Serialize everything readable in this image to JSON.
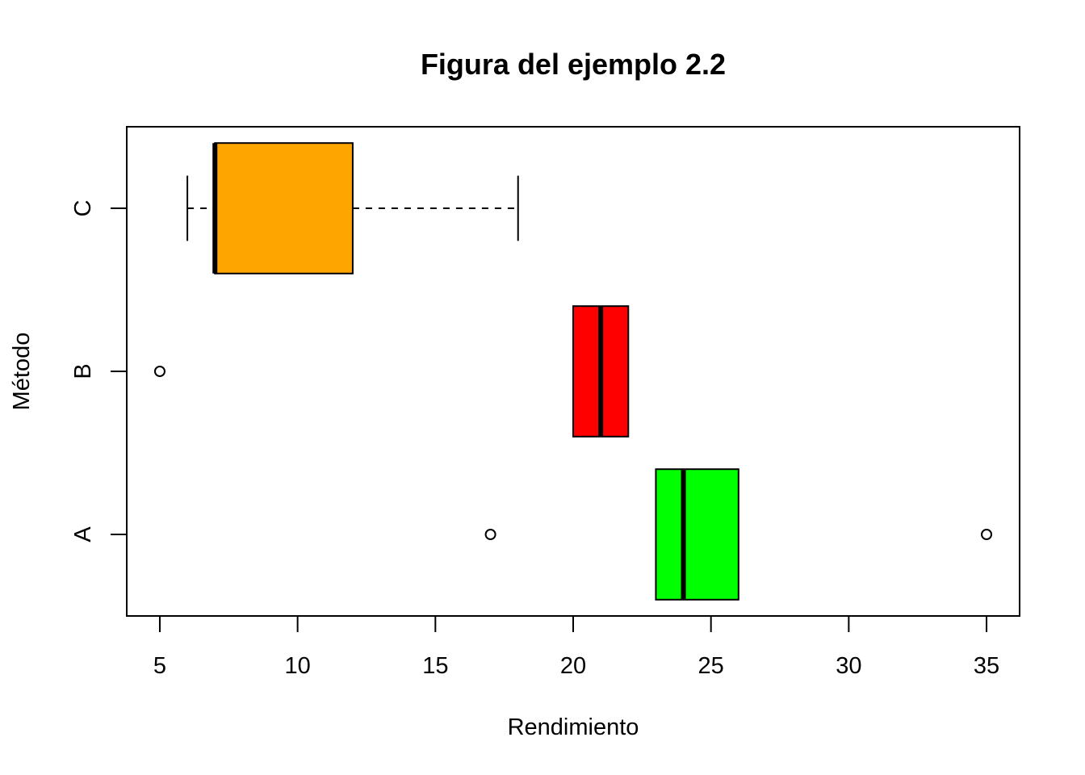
{
  "chart_data": {
    "type": "boxplot",
    "orientation": "horizontal",
    "title": "Figura del ejemplo 2.2",
    "xlabel": "Rendimiento",
    "ylabel": "Método",
    "xlim": [
      3.8,
      36.2
    ],
    "xticks": [
      5,
      10,
      15,
      20,
      25,
      30,
      35
    ],
    "categories": [
      "A",
      "B",
      "C"
    ],
    "series": [
      {
        "category": "A",
        "color": "#00ff00",
        "whisker_low": 23,
        "q1": 23,
        "median": 24,
        "q3": 26,
        "whisker_high": 26,
        "outliers": [
          17,
          35
        ]
      },
      {
        "category": "B",
        "color": "#ff0000",
        "whisker_low": 20,
        "q1": 20,
        "median": 21,
        "q3": 22,
        "whisker_high": 22,
        "outliers": [
          5
        ]
      },
      {
        "category": "C",
        "color": "#ffa500",
        "whisker_low": 6,
        "q1": 7,
        "median": 7,
        "q3": 12,
        "whisker_high": 18,
        "outliers": []
      }
    ],
    "grid": false,
    "legend": "none"
  }
}
